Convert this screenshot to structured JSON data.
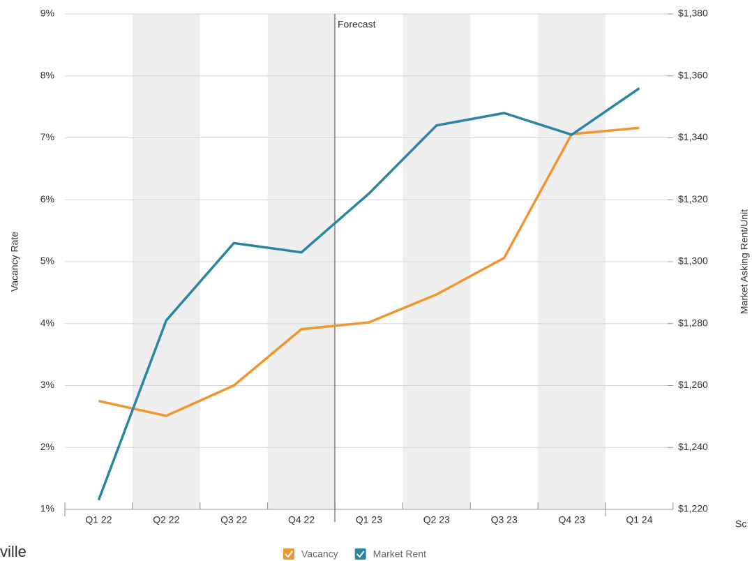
{
  "chart_data": {
    "type": "line",
    "categories": [
      "Q1 22",
      "Q2 22",
      "Q3 22",
      "Q4 22",
      "Q1 23",
      "Q2 23",
      "Q3 23",
      "Q4 23",
      "Q1 24"
    ],
    "series": [
      {
        "name": "Vacancy",
        "color": "#f0962e",
        "values": [
          2.75,
          2.51,
          3.0,
          3.91,
          4.02,
          4.47,
          5.06,
          7.06,
          7.16
        ]
      },
      {
        "name": "Market Rent",
        "color": "#2a84a4",
        "axis": "y2",
        "values": [
          1223,
          1281,
          1306,
          1303,
          1322,
          1344,
          1348,
          1341,
          1356
        ]
      }
    ],
    "ylabel": "Vacancy Rate",
    "y2label": "Market Asking Rent/Unit",
    "ylim": [
      1,
      9
    ],
    "yticks": [
      {
        "value": 1,
        "label": "1%"
      },
      {
        "value": 2,
        "label": "2%"
      },
      {
        "value": 3,
        "label": "3%"
      },
      {
        "value": 4,
        "label": "4%"
      },
      {
        "value": 5,
        "label": "5%"
      },
      {
        "value": 6,
        "label": "6%"
      },
      {
        "value": 7,
        "label": "7%"
      },
      {
        "value": 8,
        "label": "8%"
      },
      {
        "value": 9,
        "label": "9%"
      }
    ],
    "y2lim": [
      1220,
      1380
    ],
    "y2ticks": [
      {
        "value": 1220,
        "label": "$1,220"
      },
      {
        "value": 1240,
        "label": "$1,240"
      },
      {
        "value": 1260,
        "label": "$1,260"
      },
      {
        "value": 1280,
        "label": "$1,280"
      },
      {
        "value": 1300,
        "label": "$1,300"
      },
      {
        "value": 1320,
        "label": "$1,320"
      },
      {
        "value": 1340,
        "label": "$1,340"
      },
      {
        "value": 1360,
        "label": "$1,360"
      },
      {
        "value": 1380,
        "label": "$1,380"
      }
    ],
    "grid": true,
    "annotations": [
      "Forecast",
      "Sc",
      "ville"
    ]
  }
}
